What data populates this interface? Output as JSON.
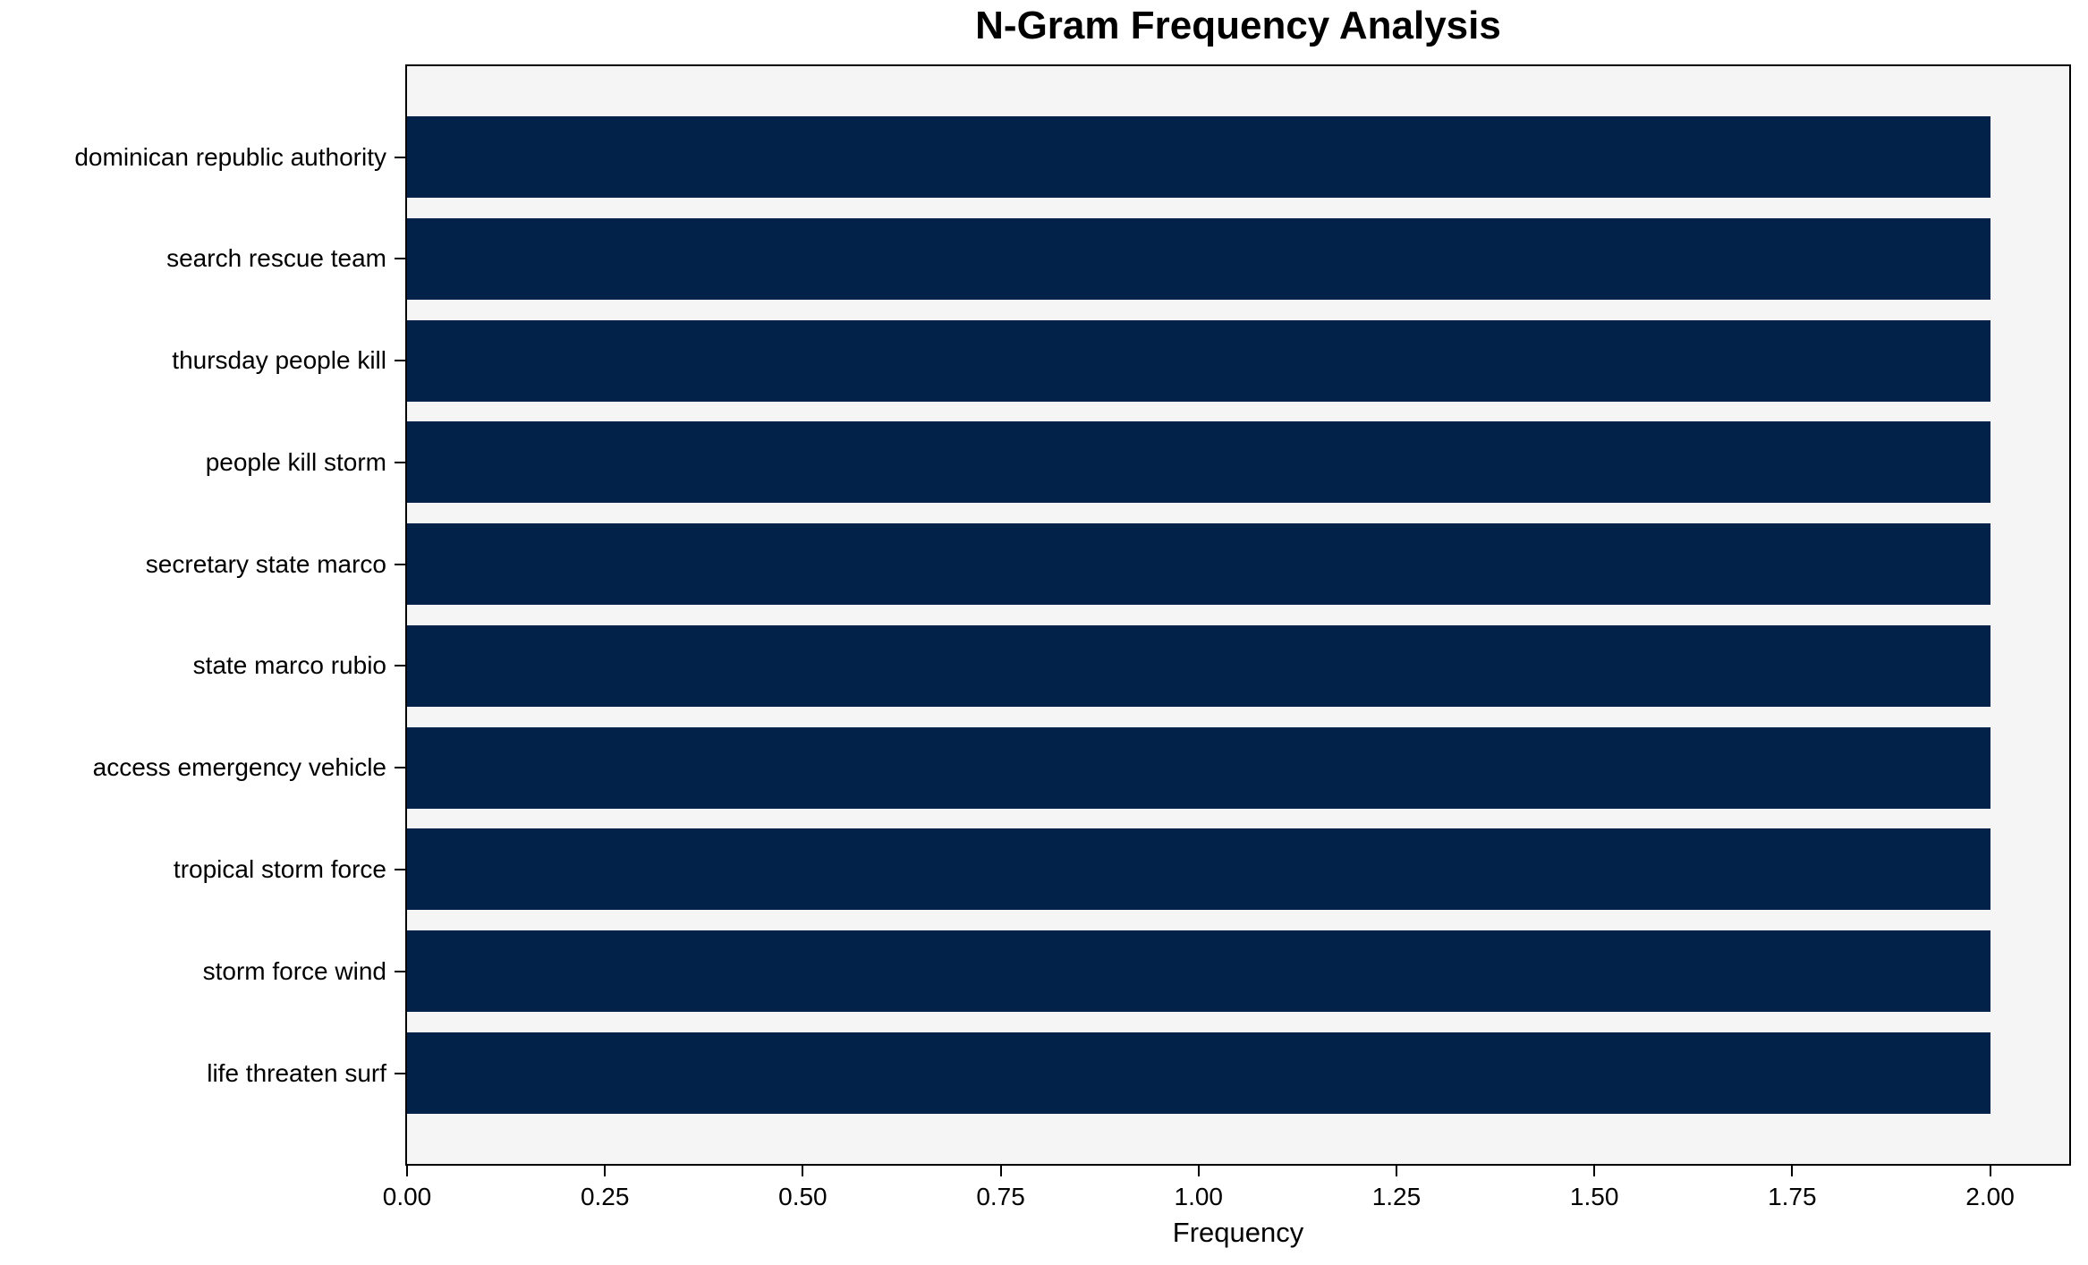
{
  "chart_data": {
    "type": "bar",
    "orientation": "horizontal",
    "title": "N-Gram Frequency Analysis",
    "xlabel": "Frequency",
    "ylabel": "",
    "categories": [
      "dominican republic authority",
      "search rescue team",
      "thursday people kill",
      "people kill storm",
      "secretary state marco",
      "state marco rubio",
      "access emergency vehicle",
      "tropical storm force",
      "storm force wind",
      "life threaten surf"
    ],
    "values": [
      2,
      2,
      2,
      2,
      2,
      2,
      2,
      2,
      2,
      2
    ],
    "xlim": [
      0,
      2.1
    ],
    "xtick_labels": [
      "0.00",
      "0.25",
      "0.50",
      "0.75",
      "1.00",
      "1.25",
      "1.50",
      "1.75",
      "2.00"
    ],
    "xtick_values": [
      0,
      0.25,
      0.5,
      0.75,
      1.0,
      1.25,
      1.5,
      1.75,
      2.0
    ],
    "grid": false,
    "legend": null,
    "colors": {
      "bar": "#03224a",
      "plot_background": "#f5f5f6",
      "figure_background": "#ffffff",
      "axis": "#000000",
      "text": "#000000"
    }
  }
}
